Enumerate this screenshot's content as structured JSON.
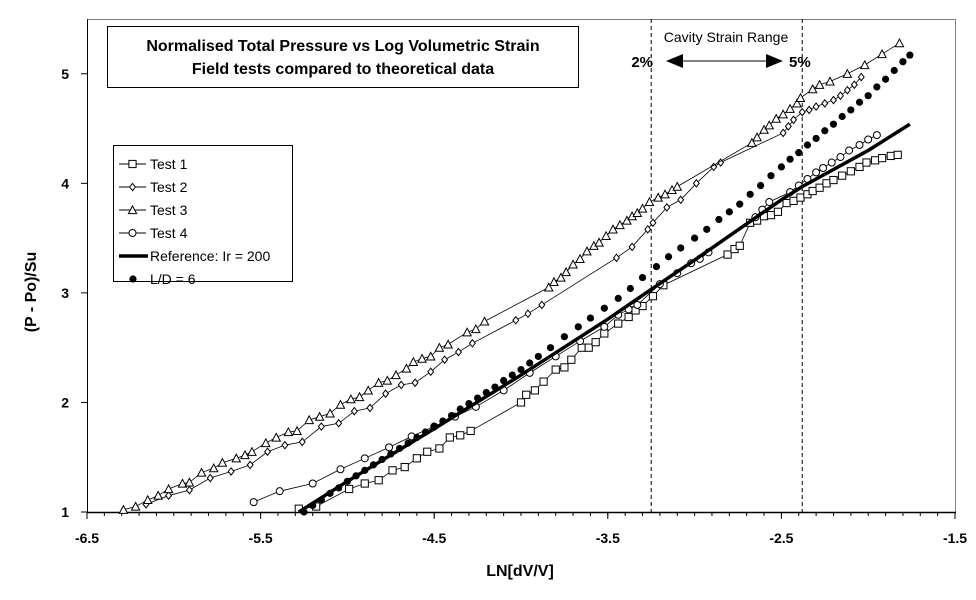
{
  "chart_data": {
    "type": "scatter",
    "title": "Normalised Total Pressure vs Log Volumetric Strain",
    "subtitle": "Field tests compared to theoretical data",
    "xlabel": "LN[dV/V]",
    "ylabel": "(P - Po)/Su",
    "xlim": [
      -6.5,
      -1.5
    ],
    "ylim": [
      1,
      5.5
    ],
    "xticks": [
      "-6.5",
      "-5.5",
      "-4.5",
      "-3.5",
      "-2.5",
      "-1.5"
    ],
    "yticks": [
      "1",
      "2",
      "3",
      "4",
      "5"
    ],
    "grid": false,
    "legend_position": "left",
    "annotations": {
      "range_label": "Cavity Strain Range",
      "left_label": "2%",
      "right_label": "5%",
      "left_line_x": -3.25,
      "right_line_x": -2.38
    },
    "series": [
      {
        "name": "Test 1",
        "marker": "square",
        "style": "line-marker",
        "points": [
          [
            -5.28,
            1.03
          ],
          [
            -5.18,
            1.05
          ],
          [
            -4.99,
            1.21
          ],
          [
            -4.9,
            1.26
          ],
          [
            -4.82,
            1.29
          ],
          [
            -4.74,
            1.38
          ],
          [
            -4.67,
            1.41
          ],
          [
            -4.6,
            1.49
          ],
          [
            -4.54,
            1.55
          ],
          [
            -4.47,
            1.58
          ],
          [
            -4.41,
            1.68
          ],
          [
            -4.35,
            1.7
          ],
          [
            -4.29,
            1.74
          ],
          [
            -4.0,
            2.0
          ],
          [
            -3.97,
            2.07
          ],
          [
            -3.92,
            2.11
          ],
          [
            -3.87,
            2.19
          ],
          [
            -3.8,
            2.3
          ],
          [
            -3.75,
            2.32
          ],
          [
            -3.71,
            2.39
          ],
          [
            -3.65,
            2.5
          ],
          [
            -3.61,
            2.5
          ],
          [
            -3.57,
            2.55
          ],
          [
            -3.52,
            2.63
          ],
          [
            -3.44,
            2.72
          ],
          [
            -3.38,
            2.78
          ],
          [
            -3.34,
            2.84
          ],
          [
            -3.3,
            2.88
          ],
          [
            -3.24,
            2.97
          ],
          [
            -3.18,
            3.07
          ],
          [
            -2.81,
            3.35
          ],
          [
            -2.77,
            3.4
          ],
          [
            -2.74,
            3.43
          ],
          [
            -2.68,
            3.64
          ],
          [
            -2.64,
            3.66
          ],
          [
            -2.6,
            3.7
          ],
          [
            -2.56,
            3.71
          ],
          [
            -2.52,
            3.74
          ],
          [
            -2.47,
            3.82
          ],
          [
            -2.43,
            3.84
          ],
          [
            -2.39,
            3.87
          ],
          [
            -2.35,
            3.9
          ],
          [
            -2.32,
            3.93
          ],
          [
            -2.28,
            3.96
          ],
          [
            -2.24,
            4.0
          ],
          [
            -2.2,
            4.03
          ],
          [
            -2.15,
            4.07
          ],
          [
            -2.1,
            4.11
          ],
          [
            -2.05,
            4.15
          ],
          [
            -2.01,
            4.19
          ],
          [
            -1.96,
            4.21
          ],
          [
            -1.92,
            4.23
          ],
          [
            -1.87,
            4.25
          ],
          [
            -1.83,
            4.26
          ]
        ]
      },
      {
        "name": "Test 2",
        "marker": "diamond",
        "style": "line-marker",
        "points": [
          [
            -6.16,
            1.07
          ],
          [
            -6.03,
            1.15
          ],
          [
            -5.91,
            1.2
          ],
          [
            -5.79,
            1.31
          ],
          [
            -5.67,
            1.37
          ],
          [
            -5.56,
            1.43
          ],
          [
            -5.46,
            1.55
          ],
          [
            -5.36,
            1.61
          ],
          [
            -5.26,
            1.64
          ],
          [
            -5.15,
            1.78
          ],
          [
            -5.05,
            1.81
          ],
          [
            -4.96,
            1.92
          ],
          [
            -4.87,
            1.95
          ],
          [
            -4.78,
            2.08
          ],
          [
            -4.69,
            2.16
          ],
          [
            -4.61,
            2.18
          ],
          [
            -4.52,
            2.28
          ],
          [
            -4.44,
            2.39
          ],
          [
            -4.36,
            2.46
          ],
          [
            -4.28,
            2.54
          ],
          [
            -4.03,
            2.75
          ],
          [
            -3.96,
            2.81
          ],
          [
            -3.88,
            2.89
          ],
          [
            -3.45,
            3.32
          ],
          [
            -3.36,
            3.42
          ],
          [
            -3.27,
            3.58
          ],
          [
            -3.24,
            3.64
          ],
          [
            -3.16,
            3.78
          ],
          [
            -3.08,
            3.85
          ],
          [
            -2.99,
            4.0
          ],
          [
            -2.89,
            4.15
          ],
          [
            -2.85,
            4.19
          ],
          [
            -2.49,
            4.46
          ],
          [
            -2.46,
            4.52
          ],
          [
            -2.43,
            4.58
          ],
          [
            -2.38,
            4.65
          ],
          [
            -2.34,
            4.67
          ],
          [
            -2.3,
            4.7
          ],
          [
            -2.25,
            4.73
          ],
          [
            -2.2,
            4.76
          ],
          [
            -2.16,
            4.8
          ],
          [
            -2.12,
            4.85
          ],
          [
            -2.08,
            4.9
          ],
          [
            -2.04,
            4.97
          ]
        ]
      },
      {
        "name": "Test 3",
        "marker": "triangle",
        "style": "line-marker",
        "points": [
          [
            -6.29,
            1.02
          ],
          [
            -6.22,
            1.05
          ],
          [
            -6.15,
            1.11
          ],
          [
            -6.09,
            1.15
          ],
          [
            -6.03,
            1.21
          ],
          [
            -5.95,
            1.26
          ],
          [
            -5.91,
            1.27
          ],
          [
            -5.84,
            1.36
          ],
          [
            -5.77,
            1.4
          ],
          [
            -5.72,
            1.45
          ],
          [
            -5.64,
            1.49
          ],
          [
            -5.59,
            1.52
          ],
          [
            -5.55,
            1.55
          ],
          [
            -5.47,
            1.63
          ],
          [
            -5.41,
            1.68
          ],
          [
            -5.34,
            1.73
          ],
          [
            -5.29,
            1.74
          ],
          [
            -5.22,
            1.84
          ],
          [
            -5.16,
            1.87
          ],
          [
            -5.1,
            1.9
          ],
          [
            -5.04,
            1.98
          ],
          [
            -4.98,
            2.03
          ],
          [
            -4.93,
            2.05
          ],
          [
            -4.88,
            2.11
          ],
          [
            -4.82,
            2.18
          ],
          [
            -4.77,
            2.2
          ],
          [
            -4.72,
            2.25
          ],
          [
            -4.66,
            2.31
          ],
          [
            -4.62,
            2.37
          ],
          [
            -4.57,
            2.4
          ],
          [
            -4.52,
            2.42
          ],
          [
            -4.47,
            2.5
          ],
          [
            -4.42,
            2.53
          ],
          [
            -4.31,
            2.64
          ],
          [
            -4.26,
            2.67
          ],
          [
            -4.21,
            2.74
          ],
          [
            -3.84,
            3.05
          ],
          [
            -3.81,
            3.1
          ],
          [
            -3.77,
            3.14
          ],
          [
            -3.74,
            3.19
          ],
          [
            -3.7,
            3.26
          ],
          [
            -3.66,
            3.31
          ],
          [
            -3.62,
            3.38
          ],
          [
            -3.58,
            3.43
          ],
          [
            -3.55,
            3.46
          ],
          [
            -3.51,
            3.52
          ],
          [
            -3.47,
            3.58
          ],
          [
            -3.43,
            3.62
          ],
          [
            -3.39,
            3.66
          ],
          [
            -3.36,
            3.7
          ],
          [
            -3.33,
            3.73
          ],
          [
            -3.3,
            3.77
          ],
          [
            -3.26,
            3.83
          ],
          [
            -3.21,
            3.87
          ],
          [
            -3.17,
            3.9
          ],
          [
            -3.13,
            3.94
          ],
          [
            -3.1,
            3.97
          ],
          [
            -2.67,
            4.37
          ],
          [
            -2.64,
            4.42
          ],
          [
            -2.6,
            4.49
          ],
          [
            -2.57,
            4.53
          ],
          [
            -2.53,
            4.59
          ],
          [
            -2.49,
            4.63
          ],
          [
            -2.45,
            4.68
          ],
          [
            -2.41,
            4.73
          ],
          [
            -2.39,
            4.78
          ],
          [
            -2.32,
            4.86
          ],
          [
            -2.28,
            4.9
          ],
          [
            -2.22,
            4.93
          ],
          [
            -2.12,
            5.0
          ],
          [
            -2.02,
            5.08
          ],
          [
            -1.92,
            5.18
          ],
          [
            -1.82,
            5.28
          ]
        ]
      },
      {
        "name": "Test 4",
        "marker": "circle",
        "style": "line-marker",
        "points": [
          [
            -5.54,
            1.09
          ],
          [
            -5.39,
            1.19
          ],
          [
            -5.2,
            1.26
          ],
          [
            -5.04,
            1.39
          ],
          [
            -4.9,
            1.49
          ],
          [
            -4.76,
            1.59
          ],
          [
            -4.63,
            1.69
          ],
          [
            -4.5,
            1.78
          ],
          [
            -4.38,
            1.87
          ],
          [
            -4.26,
            1.96
          ],
          [
            -4.1,
            2.11
          ],
          [
            -3.95,
            2.27
          ],
          [
            -3.8,
            2.42
          ],
          [
            -3.66,
            2.56
          ],
          [
            -3.52,
            2.69
          ],
          [
            -3.44,
            2.8
          ],
          [
            -3.38,
            2.85
          ],
          [
            -3.33,
            2.89
          ],
          [
            -3.2,
            3.08
          ],
          [
            -3.1,
            3.18
          ],
          [
            -3.02,
            3.27
          ],
          [
            -2.97,
            3.31
          ],
          [
            -2.92,
            3.37
          ],
          [
            -2.65,
            3.69
          ],
          [
            -2.61,
            3.76
          ],
          [
            -2.57,
            3.83
          ],
          [
            -2.45,
            3.92
          ],
          [
            -2.4,
            3.98
          ],
          [
            -2.35,
            4.04
          ],
          [
            -2.3,
            4.1
          ],
          [
            -2.26,
            4.14
          ],
          [
            -2.21,
            4.19
          ],
          [
            -2.16,
            4.24
          ],
          [
            -2.11,
            4.3
          ],
          [
            -2.05,
            4.35
          ],
          [
            -2.0,
            4.4
          ],
          [
            -1.95,
            4.44
          ]
        ]
      },
      {
        "name": "Reference: Ir = 200",
        "marker": "none",
        "style": "thick-line",
        "points": [
          [
            -5.28,
            1.0
          ],
          [
            -5.0,
            1.28
          ],
          [
            -4.5,
            1.76
          ],
          [
            -4.0,
            2.25
          ],
          [
            -3.5,
            2.76
          ],
          [
            -3.28,
            3.0
          ],
          [
            -3.0,
            3.3
          ],
          [
            -2.5,
            3.85
          ],
          [
            -2.38,
            3.97
          ],
          [
            -2.0,
            4.3
          ],
          [
            -1.76,
            4.54
          ]
        ]
      },
      {
        "name": "L/D = 6",
        "marker": "filled-circle",
        "style": "marker-only",
        "points": [
          [
            -5.25,
            1.0
          ],
          [
            -5.2,
            1.06
          ],
          [
            -5.15,
            1.11
          ],
          [
            -5.1,
            1.17
          ],
          [
            -5.05,
            1.22
          ],
          [
            -5.0,
            1.28
          ],
          [
            -4.95,
            1.33
          ],
          [
            -4.9,
            1.38
          ],
          [
            -4.85,
            1.43
          ],
          [
            -4.8,
            1.48
          ],
          [
            -4.75,
            1.53
          ],
          [
            -4.7,
            1.58
          ],
          [
            -4.65,
            1.63
          ],
          [
            -4.6,
            1.68
          ],
          [
            -4.55,
            1.73
          ],
          [
            -4.5,
            1.78
          ],
          [
            -4.45,
            1.83
          ],
          [
            -4.4,
            1.88
          ],
          [
            -4.35,
            1.94
          ],
          [
            -4.3,
            1.99
          ],
          [
            -4.25,
            2.04
          ],
          [
            -4.2,
            2.09
          ],
          [
            -4.15,
            2.14
          ],
          [
            -4.1,
            2.2
          ],
          [
            -4.05,
            2.25
          ],
          [
            -4.0,
            2.3
          ],
          [
            -3.95,
            2.36
          ],
          [
            -3.9,
            2.42
          ],
          [
            -3.83,
            2.5
          ],
          [
            -3.75,
            2.6
          ],
          [
            -3.67,
            2.69
          ],
          [
            -3.6,
            2.77
          ],
          [
            -3.52,
            2.86
          ],
          [
            -3.44,
            2.95
          ],
          [
            -3.37,
            3.04
          ],
          [
            -3.3,
            3.14
          ],
          [
            -3.22,
            3.24
          ],
          [
            -3.15,
            3.33
          ],
          [
            -3.08,
            3.41
          ],
          [
            -3.0,
            3.5
          ],
          [
            -2.93,
            3.58
          ],
          [
            -2.86,
            3.67
          ],
          [
            -2.8,
            3.74
          ],
          [
            -2.74,
            3.81
          ],
          [
            -2.68,
            3.9
          ],
          [
            -2.62,
            3.98
          ],
          [
            -2.56,
            4.07
          ],
          [
            -2.5,
            4.15
          ],
          [
            -2.45,
            4.22
          ],
          [
            -2.4,
            4.28
          ],
          [
            -2.35,
            4.35
          ],
          [
            -2.3,
            4.41
          ],
          [
            -2.25,
            4.48
          ],
          [
            -2.2,
            4.54
          ],
          [
            -2.15,
            4.61
          ],
          [
            -2.1,
            4.67
          ],
          [
            -2.05,
            4.74
          ],
          [
            -2.0,
            4.8
          ],
          [
            -1.95,
            4.88
          ],
          [
            -1.9,
            4.95
          ],
          [
            -1.85,
            5.03
          ],
          [
            -1.8,
            5.11
          ],
          [
            -1.76,
            5.17
          ]
        ]
      }
    ]
  }
}
